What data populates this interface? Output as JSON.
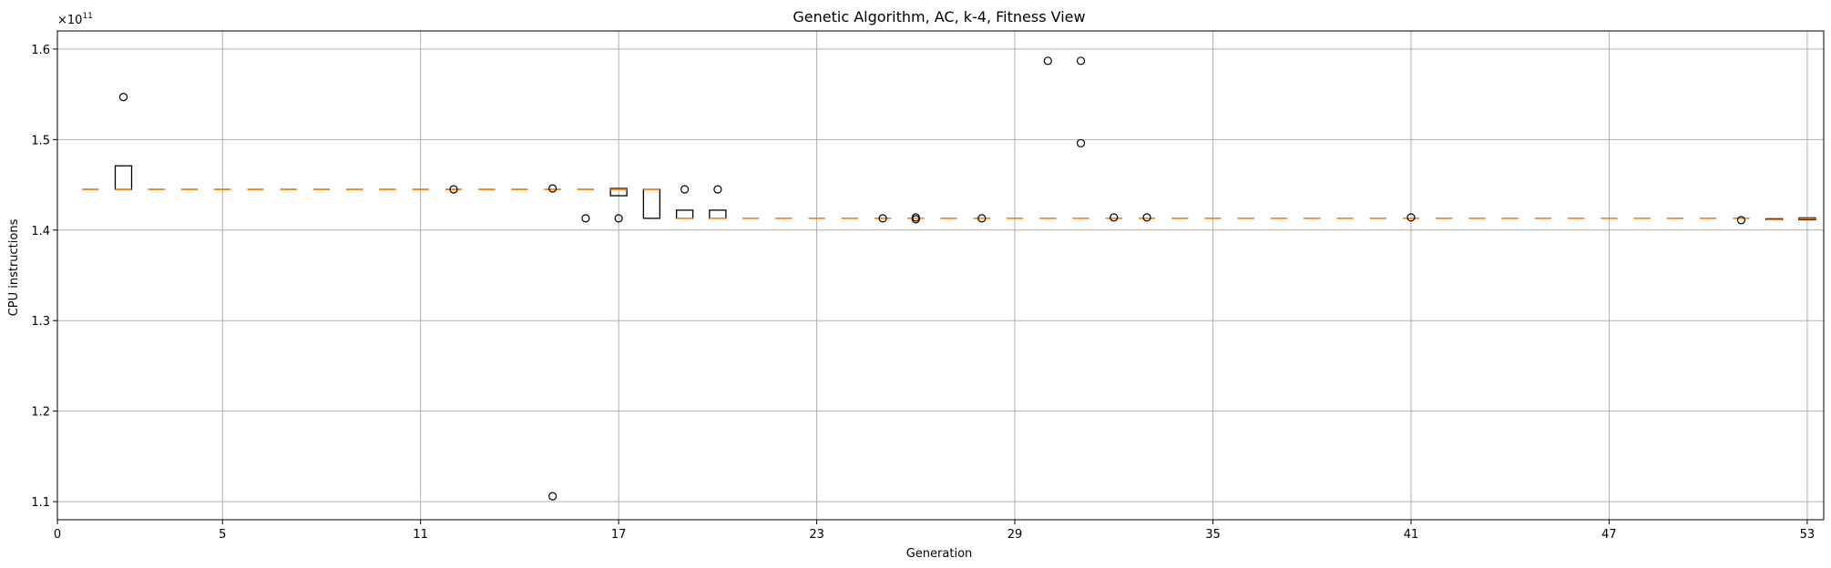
{
  "chart_data": {
    "type": "box",
    "title": "Genetic Algorithm, AC, k-4, Fitness View",
    "xlabel": "Generation",
    "ylabel": "CPU instructions",
    "y_scale_label": "×10",
    "y_scale_exponent": "11",
    "xlim": [
      0,
      53.5
    ],
    "ylim": [
      1.08,
      1.62
    ],
    "xticks": [
      0,
      5,
      11,
      17,
      23,
      29,
      35,
      41,
      47,
      53
    ],
    "yticks": [
      1.1,
      1.2,
      1.3,
      1.4,
      1.5,
      1.6
    ],
    "grid": true,
    "box_color": "#000000",
    "median_color": "#ff7f0e",
    "grid_color": "#b0b0b0",
    "boxes": [
      {
        "gen": 1,
        "q1": 1.445,
        "med": 1.445,
        "q3": 1.445,
        "outliers": []
      },
      {
        "gen": 2,
        "q1": 1.445,
        "med": 1.445,
        "q3": 1.471,
        "outliers": [
          1.547
        ]
      },
      {
        "gen": 3,
        "q1": 1.445,
        "med": 1.445,
        "q3": 1.445,
        "outliers": []
      },
      {
        "gen": 4,
        "q1": 1.445,
        "med": 1.445,
        "q3": 1.445,
        "outliers": []
      },
      {
        "gen": 5,
        "q1": 1.445,
        "med": 1.445,
        "q3": 1.445,
        "outliers": []
      },
      {
        "gen": 6,
        "q1": 1.445,
        "med": 1.445,
        "q3": 1.445,
        "outliers": []
      },
      {
        "gen": 7,
        "q1": 1.445,
        "med": 1.445,
        "q3": 1.445,
        "outliers": []
      },
      {
        "gen": 8,
        "q1": 1.445,
        "med": 1.445,
        "q3": 1.445,
        "outliers": []
      },
      {
        "gen": 9,
        "q1": 1.445,
        "med": 1.445,
        "q3": 1.445,
        "outliers": []
      },
      {
        "gen": 10,
        "q1": 1.445,
        "med": 1.445,
        "q3": 1.445,
        "outliers": []
      },
      {
        "gen": 11,
        "q1": 1.445,
        "med": 1.445,
        "q3": 1.445,
        "outliers": []
      },
      {
        "gen": 12,
        "q1": 1.445,
        "med": 1.445,
        "q3": 1.445,
        "outliers": [
          1.445
        ]
      },
      {
        "gen": 13,
        "q1": 1.445,
        "med": 1.445,
        "q3": 1.445,
        "outliers": []
      },
      {
        "gen": 14,
        "q1": 1.445,
        "med": 1.445,
        "q3": 1.445,
        "outliers": []
      },
      {
        "gen": 15,
        "q1": 1.445,
        "med": 1.445,
        "q3": 1.445,
        "outliers": [
          1.446,
          1.106
        ]
      },
      {
        "gen": 16,
        "q1": 1.445,
        "med": 1.445,
        "q3": 1.445,
        "outliers": [
          1.413
        ]
      },
      {
        "gen": 17,
        "q1": 1.438,
        "med": 1.445,
        "q3": 1.446,
        "outliers": [
          1.413
        ]
      },
      {
        "gen": 18,
        "q1": 1.413,
        "med": 1.445,
        "q3": 1.445,
        "outliers": []
      },
      {
        "gen": 19,
        "q1": 1.413,
        "med": 1.413,
        "q3": 1.422,
        "outliers": [
          1.445
        ]
      },
      {
        "gen": 20,
        "q1": 1.413,
        "med": 1.413,
        "q3": 1.422,
        "outliers": [
          1.445
        ]
      },
      {
        "gen": 21,
        "q1": 1.413,
        "med": 1.413,
        "q3": 1.413,
        "outliers": []
      },
      {
        "gen": 22,
        "q1": 1.413,
        "med": 1.413,
        "q3": 1.413,
        "outliers": []
      },
      {
        "gen": 23,
        "q1": 1.413,
        "med": 1.413,
        "q3": 1.413,
        "outliers": []
      },
      {
        "gen": 24,
        "q1": 1.413,
        "med": 1.413,
        "q3": 1.413,
        "outliers": []
      },
      {
        "gen": 25,
        "q1": 1.413,
        "med": 1.413,
        "q3": 1.413,
        "outliers": [
          1.413
        ]
      },
      {
        "gen": 26,
        "q1": 1.413,
        "med": 1.413,
        "q3": 1.413,
        "outliers": [
          1.414,
          1.412
        ]
      },
      {
        "gen": 27,
        "q1": 1.413,
        "med": 1.413,
        "q3": 1.413,
        "outliers": []
      },
      {
        "gen": 28,
        "q1": 1.413,
        "med": 1.413,
        "q3": 1.413,
        "outliers": [
          1.413
        ]
      },
      {
        "gen": 29,
        "q1": 1.413,
        "med": 1.413,
        "q3": 1.413,
        "outliers": []
      },
      {
        "gen": 30,
        "q1": 1.413,
        "med": 1.413,
        "q3": 1.413,
        "outliers": [
          1.587
        ]
      },
      {
        "gen": 31,
        "q1": 1.413,
        "med": 1.413,
        "q3": 1.413,
        "outliers": [
          1.587,
          1.496
        ]
      },
      {
        "gen": 32,
        "q1": 1.413,
        "med": 1.413,
        "q3": 1.413,
        "outliers": [
          1.414
        ]
      },
      {
        "gen": 33,
        "q1": 1.413,
        "med": 1.413,
        "q3": 1.413,
        "outliers": [
          1.414
        ]
      },
      {
        "gen": 34,
        "q1": 1.413,
        "med": 1.413,
        "q3": 1.413,
        "outliers": []
      },
      {
        "gen": 35,
        "q1": 1.413,
        "med": 1.413,
        "q3": 1.413,
        "outliers": []
      },
      {
        "gen": 36,
        "q1": 1.413,
        "med": 1.413,
        "q3": 1.413,
        "outliers": []
      },
      {
        "gen": 37,
        "q1": 1.413,
        "med": 1.413,
        "q3": 1.413,
        "outliers": []
      },
      {
        "gen": 38,
        "q1": 1.413,
        "med": 1.413,
        "q3": 1.413,
        "outliers": []
      },
      {
        "gen": 39,
        "q1": 1.413,
        "med": 1.413,
        "q3": 1.413,
        "outliers": []
      },
      {
        "gen": 40,
        "q1": 1.413,
        "med": 1.413,
        "q3": 1.413,
        "outliers": []
      },
      {
        "gen": 41,
        "q1": 1.413,
        "med": 1.413,
        "q3": 1.413,
        "outliers": [
          1.414
        ]
      },
      {
        "gen": 42,
        "q1": 1.413,
        "med": 1.413,
        "q3": 1.413,
        "outliers": []
      },
      {
        "gen": 43,
        "q1": 1.413,
        "med": 1.413,
        "q3": 1.413,
        "outliers": []
      },
      {
        "gen": 44,
        "q1": 1.413,
        "med": 1.413,
        "q3": 1.413,
        "outliers": []
      },
      {
        "gen": 45,
        "q1": 1.413,
        "med": 1.413,
        "q3": 1.413,
        "outliers": []
      },
      {
        "gen": 46,
        "q1": 1.413,
        "med": 1.413,
        "q3": 1.413,
        "outliers": []
      },
      {
        "gen": 47,
        "q1": 1.413,
        "med": 1.413,
        "q3": 1.413,
        "outliers": []
      },
      {
        "gen": 48,
        "q1": 1.413,
        "med": 1.413,
        "q3": 1.413,
        "outliers": []
      },
      {
        "gen": 49,
        "q1": 1.413,
        "med": 1.413,
        "q3": 1.413,
        "outliers": []
      },
      {
        "gen": 50,
        "q1": 1.413,
        "med": 1.413,
        "q3": 1.413,
        "outliers": []
      },
      {
        "gen": 51,
        "q1": 1.413,
        "med": 1.413,
        "q3": 1.413,
        "outliers": [
          1.411
        ]
      },
      {
        "gen": 52,
        "q1": 1.4115,
        "med": 1.4115,
        "q3": 1.4125,
        "outliers": []
      },
      {
        "gen": 53,
        "q1": 1.4115,
        "med": 1.4125,
        "q3": 1.4135,
        "outliers": []
      }
    ]
  }
}
